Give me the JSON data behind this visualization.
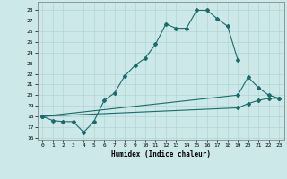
{
  "xlabel": "Humidex (Indice chaleur)",
  "bg_color": "#cce8e8",
  "grid_color": "#b0d4d4",
  "line_color": "#1a6b6b",
  "xlim": [
    -0.5,
    23.5
  ],
  "ylim": [
    15.8,
    28.8
  ],
  "yticks": [
    16,
    17,
    18,
    19,
    20,
    21,
    22,
    23,
    24,
    25,
    26,
    27,
    28
  ],
  "xticks": [
    0,
    1,
    2,
    3,
    4,
    5,
    6,
    7,
    8,
    9,
    10,
    11,
    12,
    13,
    14,
    15,
    16,
    17,
    18,
    19,
    20,
    21,
    22,
    23
  ],
  "line1_x": [
    0,
    1,
    2,
    3,
    4,
    5,
    6,
    7,
    8,
    9,
    10,
    11,
    12,
    13,
    14,
    15,
    16,
    17,
    18,
    19
  ],
  "line1_y": [
    18.0,
    17.6,
    17.5,
    17.5,
    16.5,
    17.5,
    19.5,
    20.2,
    21.8,
    22.8,
    23.5,
    24.8,
    26.7,
    26.3,
    26.3,
    28.0,
    28.0,
    27.2,
    26.5,
    23.3
  ],
  "line2_x": [
    0,
    19,
    20,
    21,
    22,
    23
  ],
  "line2_y": [
    18.0,
    20.0,
    21.7,
    20.7,
    20.0,
    19.7
  ],
  "line3_x": [
    0,
    19,
    20,
    21,
    22,
    23
  ],
  "line3_y": [
    18.0,
    18.8,
    19.2,
    19.5,
    19.7,
    19.7
  ]
}
